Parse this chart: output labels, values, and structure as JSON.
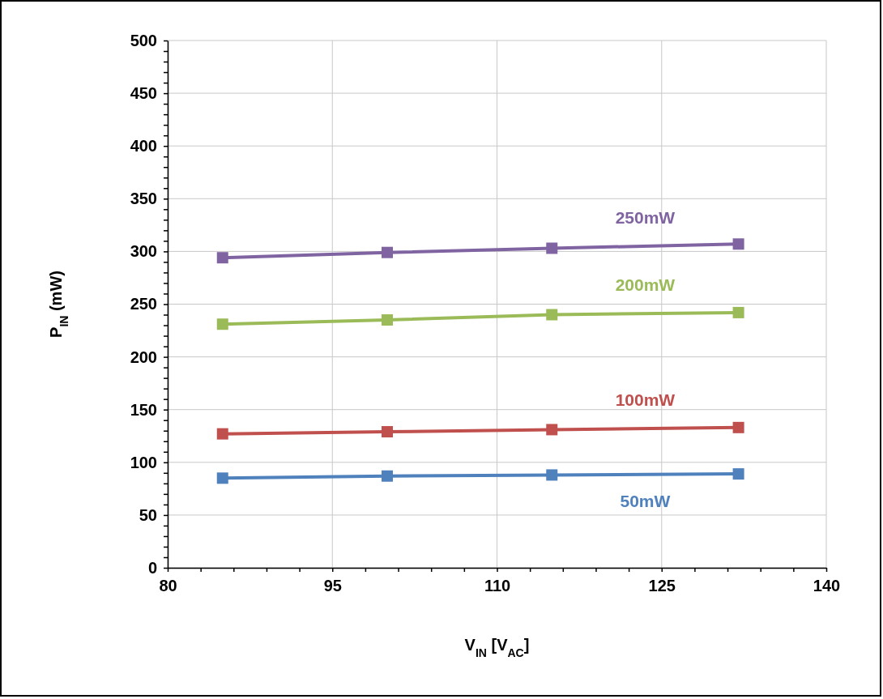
{
  "chart_data": {
    "type": "line",
    "xlabel": "V$_{IN}$ [V$_{AC}$]",
    "ylabel": "P$_{IN}$  (mW)",
    "xlim": [
      80,
      140
    ],
    "xticks": [
      80,
      {
        "value": 83,
        "label": null
      },
      {
        "value": 86,
        "label": null
      },
      {
        "value": 89,
        "label": null
      },
      {
        "value": 92,
        "label": null
      },
      95,
      {
        "value": 98,
        "label": null
      },
      {
        "value": 101,
        "label": null
      },
      {
        "value": 104,
        "label": null
      },
      {
        "value": 107,
        "label": null
      },
      110,
      {
        "value": 113,
        "label": null
      },
      {
        "value": 116,
        "label": null
      },
      {
        "value": 119,
        "label": null
      },
      {
        "value": 122,
        "label": null
      },
      125,
      {
        "value": 128,
        "label": null
      },
      {
        "value": 131,
        "label": null
      },
      {
        "value": 134,
        "label": null
      },
      {
        "value": 137,
        "label": null
      },
      140
    ],
    "ylim": [
      0,
      500
    ],
    "yticks": [
      0,
      {
        "value": 10,
        "label": null
      },
      {
        "value": 20,
        "label": null
      },
      {
        "value": 30,
        "label": null
      },
      {
        "value": 40,
        "label": null
      },
      50,
      {
        "value": 60,
        "label": null
      },
      {
        "value": 70,
        "label": null
      },
      {
        "value": 80,
        "label": null
      },
      {
        "value": 90,
        "label": null
      },
      100,
      {
        "value": 110,
        "label": null
      },
      {
        "value": 120,
        "label": null
      },
      {
        "value": 130,
        "label": null
      },
      {
        "value": 140,
        "label": null
      },
      150,
      {
        "value": 160,
        "label": null
      },
      {
        "value": 170,
        "label": null
      },
      {
        "value": 180,
        "label": null
      },
      {
        "value": 190,
        "label": null
      },
      200,
      {
        "value": 210,
        "label": null
      },
      {
        "value": 220,
        "label": null
      },
      {
        "value": 230,
        "label": null
      },
      {
        "value": 240,
        "label": null
      },
      250,
      {
        "value": 260,
        "label": null
      },
      {
        "value": 270,
        "label": null
      },
      {
        "value": 280,
        "label": null
      },
      {
        "value": 290,
        "label": null
      },
      300,
      {
        "value": 310,
        "label": null
      },
      {
        "value": 320,
        "label": null
      },
      {
        "value": 330,
        "label": null
      },
      {
        "value": 340,
        "label": null
      },
      350,
      {
        "value": 360,
        "label": null
      },
      {
        "value": 370,
        "label": null
      },
      {
        "value": 380,
        "label": null
      },
      {
        "value": 390,
        "label": null
      },
      400,
      {
        "value": 410,
        "label": null
      },
      {
        "value": 420,
        "label": null
      },
      {
        "value": 430,
        "label": null
      },
      {
        "value": 440,
        "label": null
      },
      450,
      {
        "value": 460,
        "label": null
      },
      {
        "value": 470,
        "label": null
      },
      {
        "value": 480,
        "label": null
      },
      {
        "value": 490,
        "label": null
      },
      500
    ],
    "x": [
      85,
      100,
      115,
      132
    ],
    "grid": true,
    "marker": "square",
    "line_style": "solid",
    "series": [
      {
        "name": "50mW",
        "color": "#4f81bd",
        "values": [
          85,
          87,
          88,
          89
        ]
      },
      {
        "name": "100mW",
        "color": "#c0504d",
        "values": [
          127,
          129,
          131,
          133
        ]
      },
      {
        "name": "200mW",
        "color": "#9bbb59",
        "values": [
          231,
          235,
          240,
          242
        ]
      },
      {
        "name": "250mW",
        "color": "#8064a2",
        "values": [
          294,
          299,
          303,
          307
        ]
      }
    ]
  }
}
